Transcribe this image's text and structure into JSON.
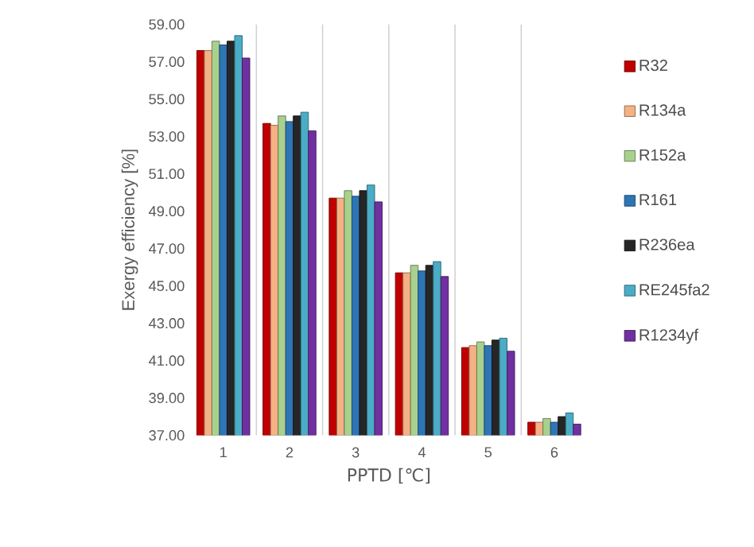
{
  "chart_data": {
    "type": "bar",
    "xlabel": "PPTD [℃]",
    "ylabel": "Exergy  efficiency  [%]",
    "categories": [
      "1",
      "2",
      "3",
      "4",
      "5",
      "6"
    ],
    "ylim": [
      37,
      59
    ],
    "yticks": [
      {
        "value": 37,
        "label": "37.00"
      },
      {
        "value": 39,
        "label": "39.00"
      },
      {
        "value": 41,
        "label": "41.00"
      },
      {
        "value": 43,
        "label": "43.00"
      },
      {
        "value": 45,
        "label": "45.00"
      },
      {
        "value": 47,
        "label": "47.00"
      },
      {
        "value": 49,
        "label": "49.00"
      },
      {
        "value": 51,
        "label": "51.00"
      },
      {
        "value": 53,
        "label": "53.00"
      },
      {
        "value": 55,
        "label": "55.00"
      },
      {
        "value": 57,
        "label": "57.00"
      },
      {
        "value": 59,
        "label": "59.00"
      }
    ],
    "grid": "x",
    "legend": "right",
    "series": [
      {
        "name": "R32",
        "color": "#c00000",
        "values": [
          57.6,
          53.7,
          49.7,
          45.7,
          41.7,
          37.7
        ]
      },
      {
        "name": "R134a",
        "color": "#f4b183",
        "values": [
          57.6,
          53.6,
          49.7,
          45.7,
          41.8,
          37.7
        ]
      },
      {
        "name": "R152a",
        "color": "#a9d18e",
        "values": [
          58.1,
          54.1,
          50.1,
          46.1,
          42.0,
          37.9
        ]
      },
      {
        "name": "R161",
        "color": "#2e75b6",
        "values": [
          57.9,
          53.8,
          49.8,
          45.8,
          41.8,
          37.7
        ]
      },
      {
        "name": "R236ea",
        "color": "#262626",
        "values": [
          58.1,
          54.1,
          50.1,
          46.1,
          42.1,
          38.0
        ]
      },
      {
        "name": "RE245fa2",
        "color": "#4bacc6",
        "values": [
          58.4,
          54.3,
          50.4,
          46.3,
          42.2,
          38.2
        ]
      },
      {
        "name": "R1234yf",
        "color": "#7030a0",
        "values": [
          57.2,
          53.3,
          49.5,
          45.5,
          41.5,
          37.6
        ]
      }
    ]
  }
}
